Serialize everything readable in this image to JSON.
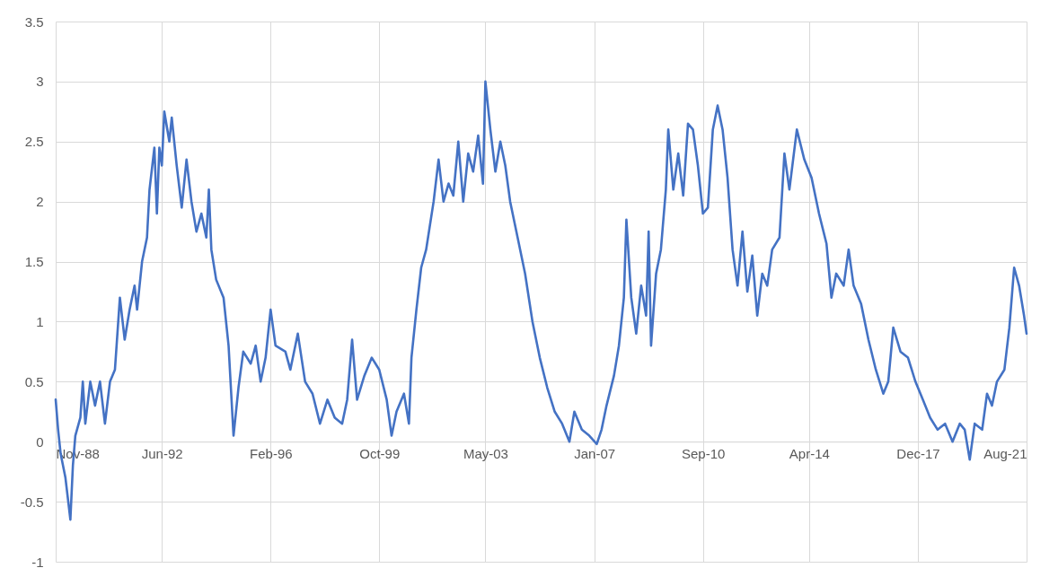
{
  "chart_data": {
    "type": "line",
    "x": [
      "1988-11",
      "1988-12",
      "1989-01",
      "1989-03",
      "1989-05",
      "1989-06",
      "1989-07",
      "1989-09",
      "1989-10",
      "1989-11",
      "1990-01",
      "1990-03",
      "1990-05",
      "1990-07",
      "1990-09",
      "1990-11",
      "1991-01",
      "1991-03",
      "1991-05",
      "1991-07",
      "1991-08",
      "1991-10",
      "1991-12",
      "1992-01",
      "1992-03",
      "1992-04",
      "1992-05",
      "1992-06",
      "1992-07",
      "1992-09",
      "1992-10",
      "1992-12",
      "1993-02",
      "1993-04",
      "1993-06",
      "1993-08",
      "1993-10",
      "1993-12",
      "1994-01",
      "1994-02",
      "1994-04",
      "1994-07",
      "1994-09",
      "1994-11",
      "1995-01",
      "1995-03",
      "1995-06",
      "1995-08",
      "1995-10",
      "1995-12",
      "1996-02",
      "1996-04",
      "1996-08",
      "1996-10",
      "1997-01",
      "1997-04",
      "1997-07",
      "1997-10",
      "1998-01",
      "1998-04",
      "1998-07",
      "1998-09",
      "1998-11",
      "1999-01",
      "1999-04",
      "1999-07",
      "1999-10",
      "2000-01",
      "2000-03",
      "2000-05",
      "2000-08",
      "2000-10",
      "2000-11",
      "2001-01",
      "2001-03",
      "2001-05",
      "2001-08",
      "2001-10",
      "2001-12",
      "2002-02",
      "2002-04",
      "2002-06",
      "2002-08",
      "2002-10",
      "2002-12",
      "2003-02",
      "2003-04",
      "2003-05",
      "2003-07",
      "2003-09",
      "2003-11",
      "2004-01",
      "2004-03",
      "2004-06",
      "2004-09",
      "2004-12",
      "2005-03",
      "2005-06",
      "2005-09",
      "2005-12",
      "2006-03",
      "2006-05",
      "2006-08",
      "2006-11",
      "2007-02",
      "2007-04",
      "2007-06",
      "2007-09",
      "2007-11",
      "2008-01",
      "2008-02",
      "2008-04",
      "2008-06",
      "2008-08",
      "2008-10",
      "2008-11",
      "2008-12",
      "2009-02",
      "2009-04",
      "2009-06",
      "2009-07",
      "2009-09",
      "2009-11",
      "2010-01",
      "2010-03",
      "2010-05",
      "2010-07",
      "2010-09",
      "2010-11",
      "2011-01",
      "2011-03",
      "2011-05",
      "2011-07",
      "2011-09",
      "2011-11",
      "2012-01",
      "2012-03",
      "2012-05",
      "2012-07",
      "2012-09",
      "2012-11",
      "2013-01",
      "2013-04",
      "2013-06",
      "2013-08",
      "2013-11",
      "2014-02",
      "2014-05",
      "2014-08",
      "2014-11",
      "2015-01",
      "2015-03",
      "2015-06",
      "2015-08",
      "2015-10",
      "2016-01",
      "2016-04",
      "2016-07",
      "2016-10",
      "2016-12",
      "2017-02",
      "2017-05",
      "2017-08",
      "2017-11",
      "2018-02",
      "2018-05",
      "2018-08",
      "2018-11",
      "2019-02",
      "2019-05",
      "2019-07",
      "2019-09",
      "2019-11",
      "2020-02",
      "2020-04",
      "2020-06",
      "2020-08",
      "2020-11",
      "2021-01",
      "2021-03",
      "2021-05",
      "2021-07",
      "2021-08"
    ],
    "series": [
      {
        "color": "#4472c4",
        "values": [
          0.35,
          0.1,
          -0.1,
          -0.3,
          -0.65,
          -0.2,
          0.05,
          0.2,
          0.5,
          0.15,
          0.5,
          0.3,
          0.5,
          0.15,
          0.5,
          0.6,
          1.2,
          0.85,
          1.1,
          1.3,
          1.1,
          1.5,
          1.7,
          2.1,
          2.45,
          1.9,
          2.45,
          2.3,
          2.75,
          2.5,
          2.7,
          2.3,
          1.95,
          2.35,
          2.0,
          1.75,
          1.9,
          1.7,
          2.1,
          1.6,
          1.35,
          1.2,
          0.8,
          0.05,
          0.45,
          0.75,
          0.65,
          0.8,
          0.5,
          0.7,
          1.1,
          0.8,
          0.75,
          0.6,
          0.9,
          0.5,
          0.4,
          0.15,
          0.35,
          0.2,
          0.15,
          0.35,
          0.85,
          0.35,
          0.55,
          0.7,
          0.6,
          0.35,
          0.05,
          0.25,
          0.4,
          0.15,
          0.7,
          1.1,
          1.45,
          1.6,
          2.0,
          2.35,
          2.0,
          2.15,
          2.05,
          2.5,
          2.0,
          2.4,
          2.25,
          2.55,
          2.15,
          3.0,
          2.6,
          2.25,
          2.5,
          2.3,
          2.0,
          1.7,
          1.4,
          1.0,
          0.7,
          0.45,
          0.25,
          0.15,
          0.0,
          0.25,
          0.1,
          0.05,
          -0.02,
          0.1,
          0.3,
          0.55,
          0.8,
          1.2,
          1.85,
          1.2,
          0.9,
          1.3,
          1.05,
          1.75,
          0.8,
          1.4,
          1.6,
          2.1,
          2.6,
          2.1,
          2.4,
          2.05,
          2.65,
          2.6,
          2.3,
          1.9,
          1.95,
          2.6,
          2.8,
          2.6,
          2.2,
          1.6,
          1.3,
          1.75,
          1.25,
          1.55,
          1.05,
          1.4,
          1.3,
          1.6,
          1.7,
          2.4,
          2.1,
          2.6,
          2.35,
          2.2,
          1.9,
          1.65,
          1.2,
          1.4,
          1.3,
          1.6,
          1.3,
          1.15,
          0.85,
          0.6,
          0.4,
          0.5,
          0.95,
          0.75,
          0.7,
          0.5,
          0.35,
          0.2,
          0.1,
          0.15,
          0.0,
          0.15,
          0.1,
          -0.15,
          0.15,
          0.1,
          0.4,
          0.3,
          0.5,
          0.6,
          0.95,
          1.45,
          1.3,
          1.05,
          0.9
        ]
      }
    ],
    "xlim": [
      "1988-11",
      "2021-08"
    ],
    "xticks": [
      {
        "value": "1988-11",
        "label": "Nov-88"
      },
      {
        "value": "1992-06",
        "label": "Jun-92"
      },
      {
        "value": "1996-02",
        "label": "Feb-96"
      },
      {
        "value": "1999-10",
        "label": "Oct-99"
      },
      {
        "value": "2003-05",
        "label": "May-03"
      },
      {
        "value": "2007-01",
        "label": "Jan-07"
      },
      {
        "value": "2010-09",
        "label": "Sep-10"
      },
      {
        "value": "2014-04",
        "label": "Apr-14"
      },
      {
        "value": "2017-12",
        "label": "Dec-17"
      },
      {
        "value": "2021-08",
        "label": "Aug-21"
      }
    ],
    "ylim": [
      -1,
      3.5
    ],
    "yticks": [
      -1,
      -0.5,
      0,
      0.5,
      1,
      1.5,
      2,
      2.5,
      3,
      3.5
    ],
    "grid": true,
    "line_style": "solid",
    "marker": "none"
  }
}
